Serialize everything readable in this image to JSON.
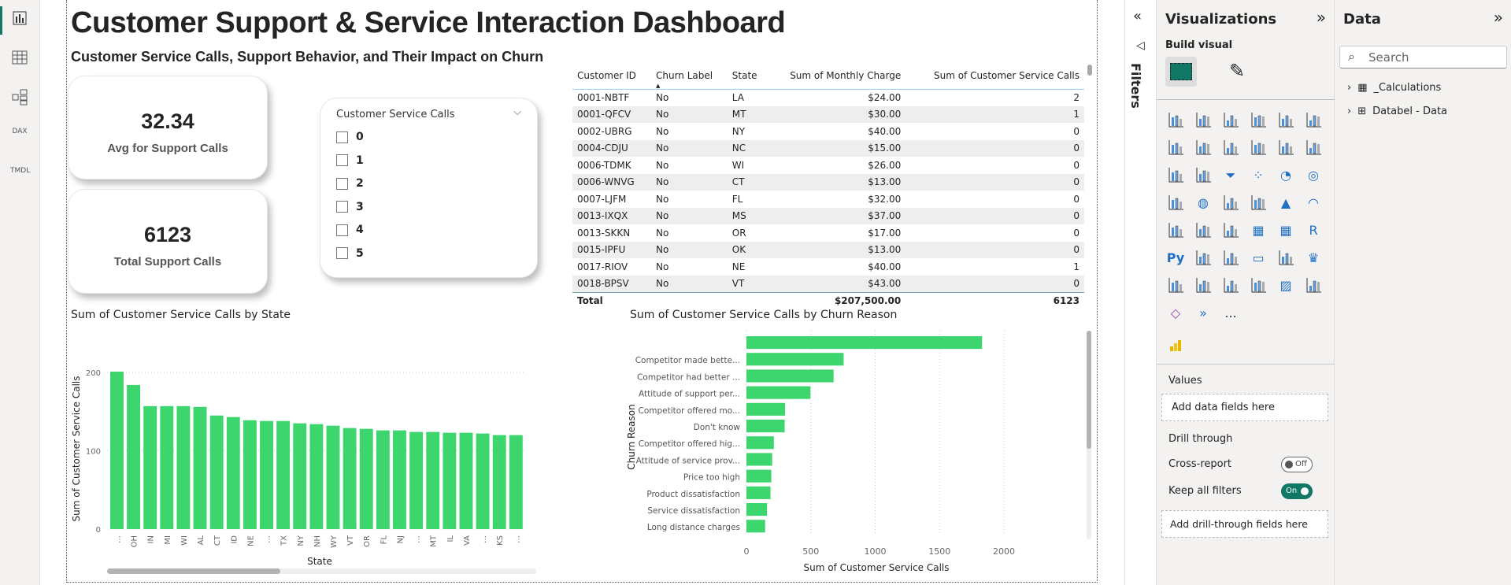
{
  "nav": {
    "rail_icons": [
      "report-view-icon",
      "table-view-icon",
      "model-view-icon",
      "dax-query-icon",
      "tmdl-view-icon"
    ],
    "dax_label": "DAX",
    "tmdl_label": "TMDL"
  },
  "header": {
    "title": "Customer Support & Service Interaction Dashboard",
    "subtitle": "Customer Service Calls, Support Behavior, and Their Impact on Churn"
  },
  "cards": [
    {
      "value": "32.34",
      "label": "Avg for Support Calls"
    },
    {
      "value": "6123",
      "label": "Total Support Calls"
    }
  ],
  "slicer": {
    "title": "Customer Service Calls",
    "options": [
      "0",
      "1",
      "2",
      "3",
      "4",
      "5"
    ]
  },
  "table": {
    "columns": [
      "Customer ID",
      "Churn Label",
      "State",
      "Sum of Monthly Charge",
      "Sum of Customer Service Calls"
    ],
    "rows": [
      [
        "0001-NBTF",
        "No",
        "LA",
        "$24.00",
        "2"
      ],
      [
        "0001-QFCV",
        "No",
        "MT",
        "$30.00",
        "1"
      ],
      [
        "0002-UBRG",
        "No",
        "NY",
        "$40.00",
        "0"
      ],
      [
        "0004-CDJU",
        "No",
        "NC",
        "$15.00",
        "0"
      ],
      [
        "0006-TDMK",
        "No",
        "WI",
        "$26.00",
        "0"
      ],
      [
        "0006-WNVG",
        "No",
        "CT",
        "$13.00",
        "0"
      ],
      [
        "0007-LJFM",
        "No",
        "FL",
        "$32.00",
        "0"
      ],
      [
        "0013-IXQX",
        "No",
        "MS",
        "$37.00",
        "0"
      ],
      [
        "0013-SKKN",
        "No",
        "OR",
        "$17.00",
        "0"
      ],
      [
        "0015-IPFU",
        "No",
        "OK",
        "$13.00",
        "0"
      ],
      [
        "0017-RIOV",
        "No",
        "NE",
        "$40.00",
        "1"
      ],
      [
        "0018-BPSV",
        "No",
        "VT",
        "$43.00",
        "0"
      ]
    ],
    "total": {
      "label": "Total",
      "monthly_charge": "$207,500.00",
      "service_calls": "6123"
    }
  },
  "chart_data": [
    {
      "type": "bar",
      "title": "Sum of Customer Service Calls by State",
      "xlabel": "State",
      "ylabel": "Sum of Customer Service Calls",
      "ylim": [
        0,
        200
      ],
      "yticks": [
        "0",
        "100",
        "200"
      ],
      "categories": [
        "…",
        "OH",
        "IN",
        "MI",
        "WI",
        "AL",
        "CT",
        "ID",
        "NE",
        "…",
        "TX",
        "NY",
        "NH",
        "WY",
        "VT",
        "OR",
        "FL",
        "NJ",
        "…",
        "MT",
        "IL",
        "VA",
        "…",
        "KS",
        "…"
      ],
      "values": [
        201,
        184,
        157,
        157,
        157,
        156,
        145,
        143,
        139,
        138,
        138,
        135,
        134,
        132,
        129,
        128,
        126,
        126,
        124,
        124,
        123,
        123,
        122,
        120,
        120
      ],
      "color": "#3dd56d",
      "grid": true
    },
    {
      "type": "bar",
      "orientation": "horizontal",
      "title": "Sum of Customer Service Calls by Churn Reason",
      "xlabel": "Sum of Customer Service Calls",
      "ylabel": "Churn Reason",
      "xlim": [
        0,
        2000
      ],
      "xticks": [
        "0",
        "500",
        "1000",
        "1500",
        "2000"
      ],
      "categories": [
        "",
        "Competitor made bette...",
        "Competitor had better ...",
        "Attitude of support per...",
        "Competitor offered mo...",
        "Don't know",
        "Competitor offered hig...",
        "Attitude of service prov...",
        "Price too high",
        "Product dissatisfaction",
        "Service dissatisfaction",
        "Long distance charges"
      ],
      "values": [
        1830,
        755,
        677,
        497,
        300,
        297,
        213,
        200,
        193,
        187,
        160,
        145
      ],
      "color": "#3dd56d",
      "grid": true
    }
  ],
  "filters": {
    "label": "Filters"
  },
  "viz": {
    "title": "Visualizations",
    "build_visual": "Build visual",
    "more": "...",
    "values_label": "Values",
    "values_placeholder": "Add data fields here",
    "drill_through": "Drill through",
    "cross_report": "Cross-report",
    "cross_report_state": "Off",
    "keep_filters": "Keep all filters",
    "keep_filters_state": "On",
    "drill_placeholder": "Add drill-through fields here",
    "icons": [
      "stacked-bar-icon",
      "stacked-column-icon",
      "clustered-bar-icon",
      "clustered-column-icon",
      "100-stacked-bar-icon",
      "100-stacked-column-icon",
      "line-chart-icon",
      "area-chart-icon",
      "stacked-area-icon",
      "100-area-icon",
      "line-column-icon",
      "line-clustered-column-icon",
      "ribbon-chart-icon",
      "waterfall-icon",
      "funnel-icon",
      "scatter-icon",
      "pie-icon",
      "donut-icon",
      "treemap-icon",
      "map-icon",
      "filled-map-icon",
      "shape-map-icon",
      "azure-map-icon",
      "gauge-icon",
      "card-icon",
      "kpi-icon",
      "slicer-icon",
      "table-icon",
      "matrix-icon",
      "r-visual-icon",
      "python-visual-icon",
      "key-influencers-icon",
      "decomposition-tree-icon",
      "qa-icon",
      "narrative-icon",
      "goals-icon",
      "paginated-report-icon",
      "button-slicer-icon",
      "text-slicer-icon",
      "list-slicer-icon",
      "image-icon",
      "arcgis-icon",
      "power-apps-icon",
      "power-automate-icon"
    ]
  },
  "data_pane": {
    "title": "Data",
    "search_placeholder": "Search",
    "items": [
      "_Calculations",
      "Databel - Data"
    ]
  }
}
